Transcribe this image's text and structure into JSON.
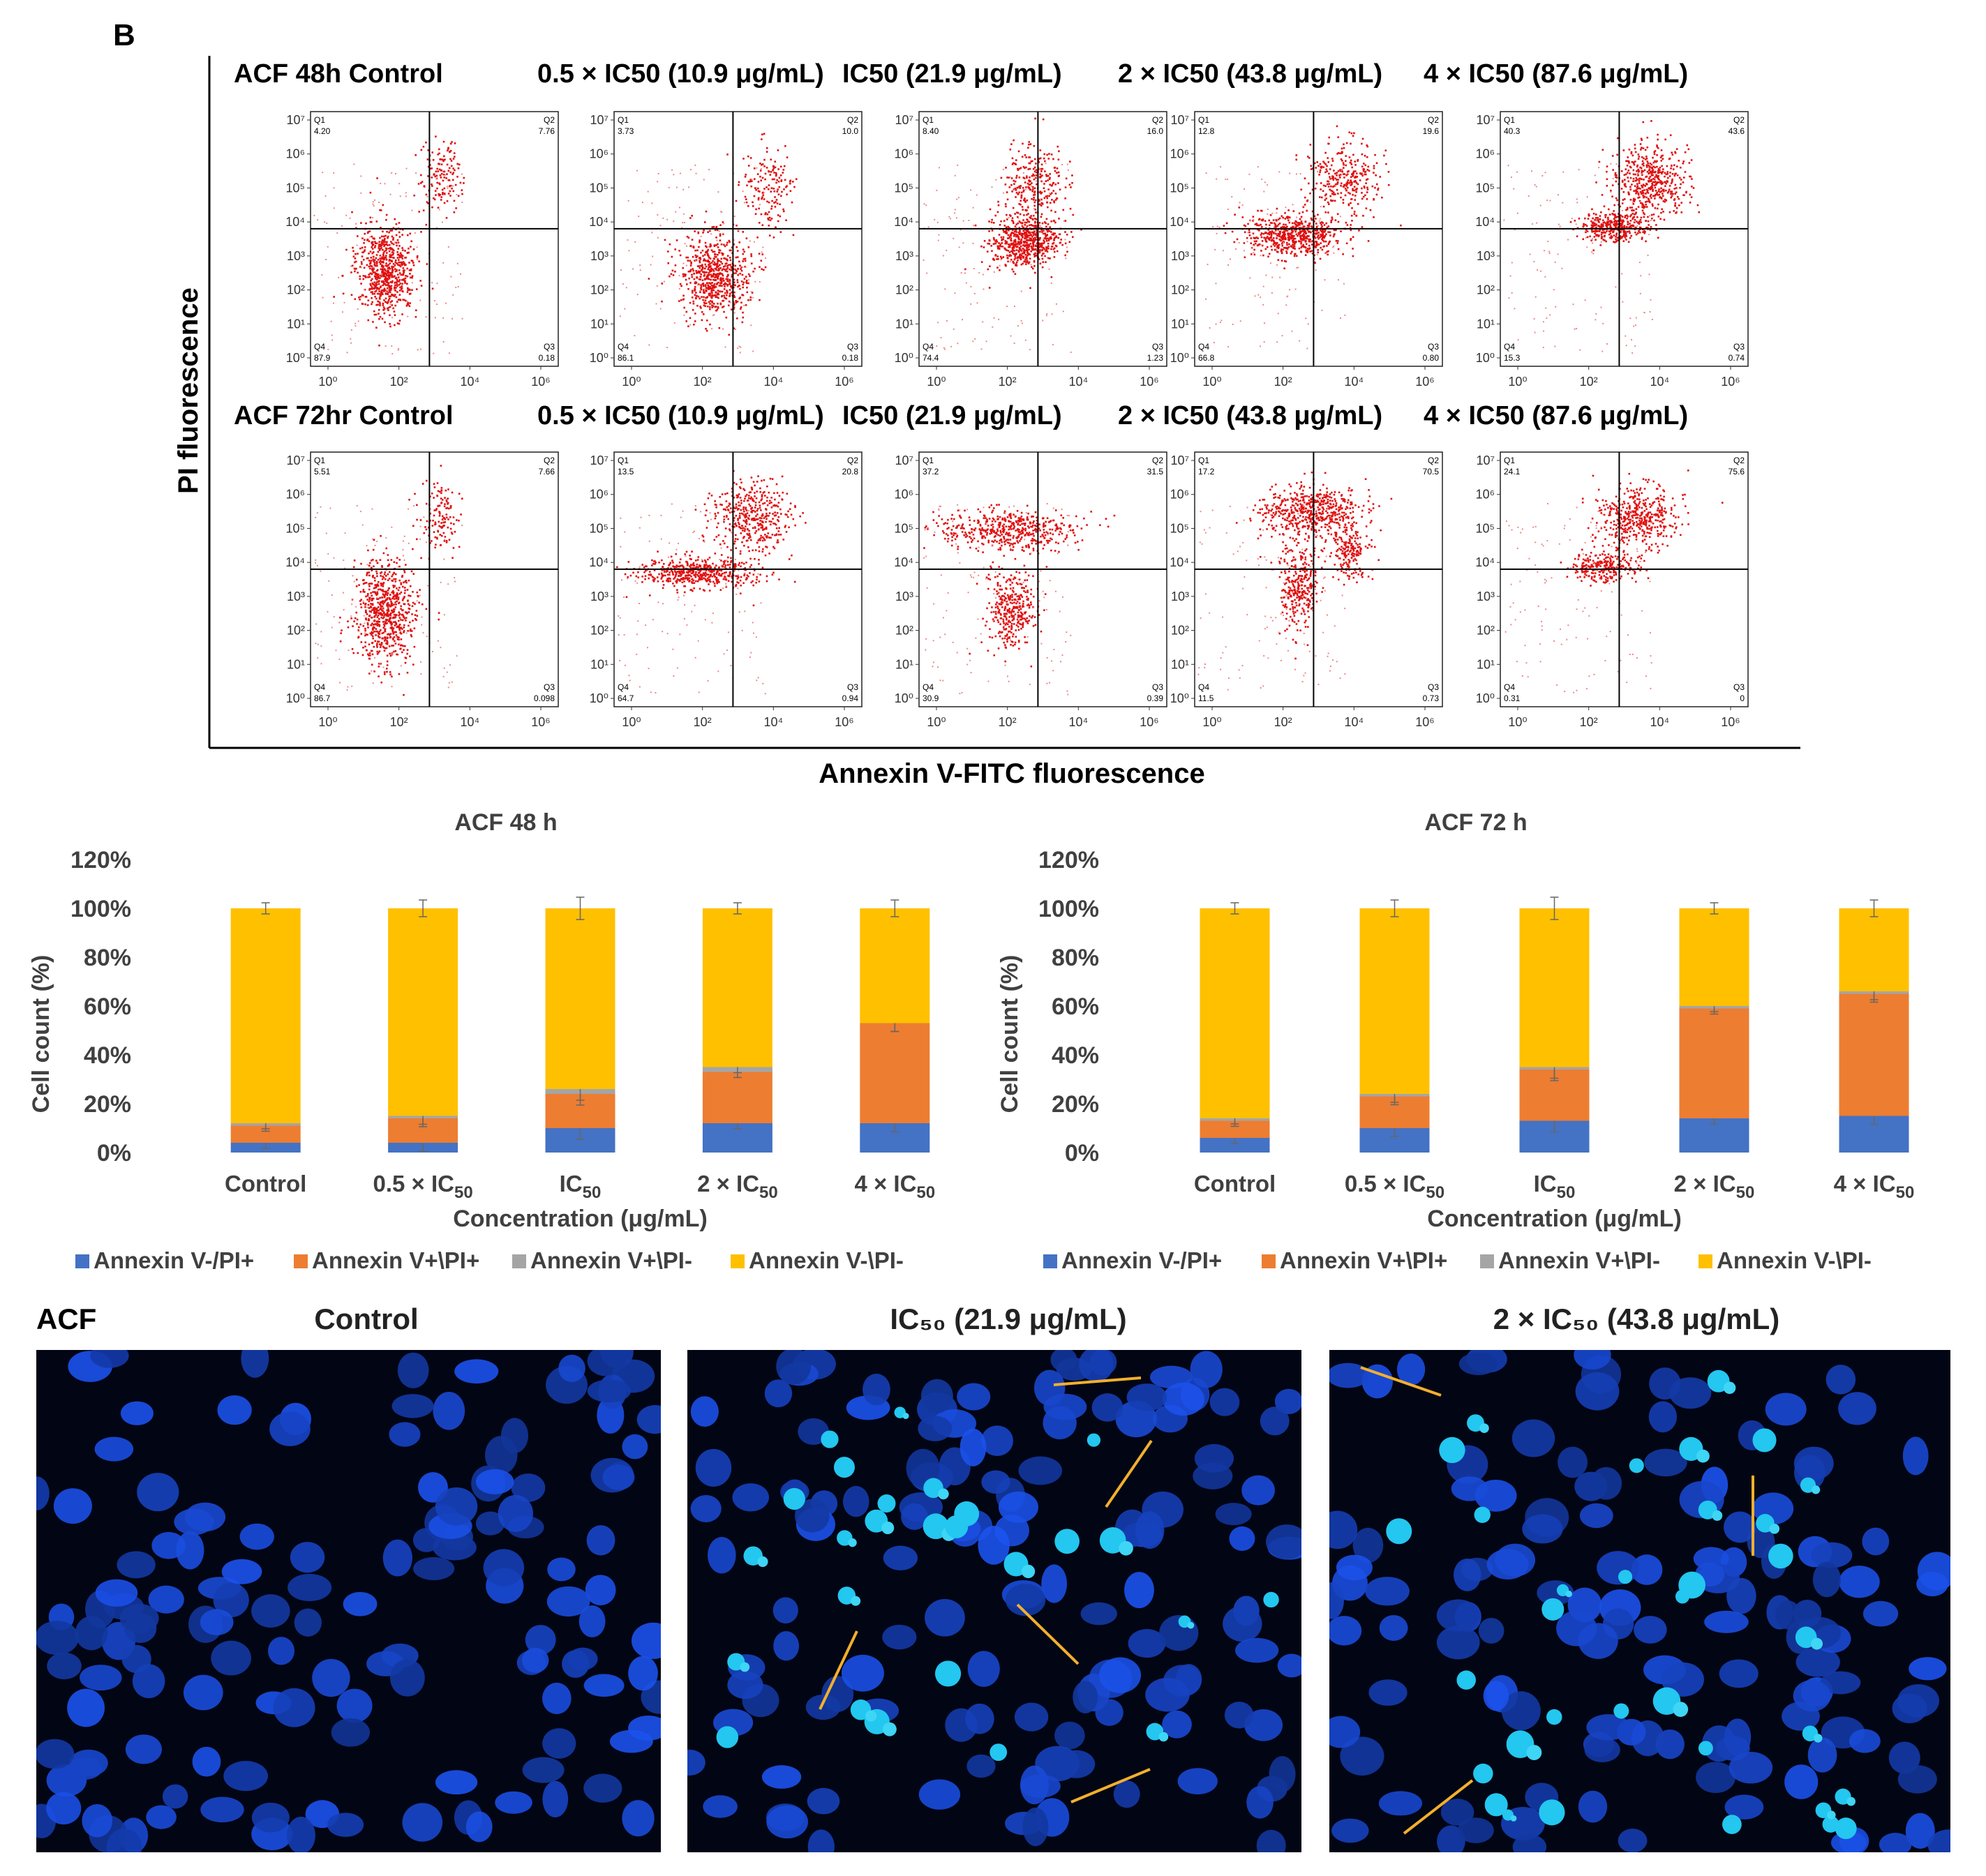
{
  "panel_label": "B",
  "flow": {
    "y_axis_title": "PI fluorescence",
    "x_axis_title": "Annexin V-FITC fluorescence",
    "y_ticks": [
      "10⁷",
      "10⁶",
      "10⁵",
      "10⁴",
      "10³",
      "10²",
      "10¹",
      "10⁰"
    ],
    "x_ticks": [
      "10⁰",
      "10²",
      "10⁴",
      "10⁶"
    ],
    "quadrant_labels": {
      "q1": "Q1",
      "q2": "Q2",
      "q3": "Q3",
      "q4": "Q4"
    },
    "rows": [
      {
        "plots": [
          {
            "title": "ACF 48h  Control",
            "q1": "4.20",
            "q2": "7.76",
            "q3": "0.18",
            "q4": "87.9"
          },
          {
            "title": "0.5 × IC50 (10.9 μg/mL)",
            "q1": "3.73",
            "q2": "10.0",
            "q3": "0.18",
            "q4": "86.1"
          },
          {
            "title": "IC50 (21.9 μg/mL)",
            "q1": "8.40",
            "q2": "16.0",
            "q3": "1.23",
            "q4": "74.4"
          },
          {
            "title": "2 × IC50 (43.8 μg/mL)",
            "q1": "12.8",
            "q2": "19.6",
            "q3": "0.80",
            "q4": "66.8"
          },
          {
            "title": "4 × IC50 (87.6 μg/mL)",
            "q1": "40.3",
            "q2": "43.6",
            "q3": "0.74",
            "q4": "15.3"
          }
        ]
      },
      {
        "plots": [
          {
            "title": "ACF 72hr  Control",
            "q1": "5.51",
            "q2": "7.66",
            "q3": "0.098",
            "q4": "86.7"
          },
          {
            "title": "0.5 × IC50 (10.9 μg/mL)",
            "q1": "13.5",
            "q2": "20.8",
            "q3": "0.94",
            "q4": "64.7"
          },
          {
            "title": "IC50 (21.9 μg/mL)",
            "q1": "37.2",
            "q2": "31.5",
            "q3": "0.39",
            "q4": "30.9"
          },
          {
            "title": "2 × IC50 (43.8 μg/mL)",
            "q1": "17.2",
            "q2": "70.5",
            "q3": "0.73",
            "q4": "11.5"
          },
          {
            "title": "4 × IC50 (87.6 μg/mL)",
            "q1": "24.1",
            "q2": "75.6",
            "q3": "0",
            "q4": "0.31"
          }
        ]
      }
    ]
  },
  "chart_data": [
    {
      "type": "bar",
      "stacked": true,
      "title": "ACF 48 h",
      "xlabel": "Concentration (μg/mL)",
      "ylabel": "Cell count (%)",
      "ylim": [
        0,
        120
      ],
      "yticks": [
        "0%",
        "20%",
        "40%",
        "60%",
        "80%",
        "100%",
        "120%"
      ],
      "categories": [
        {
          "main": "Control",
          "sub": ""
        },
        {
          "main": "0.5 × IC",
          "sub": "50"
        },
        {
          "main": "IC",
          "sub": "50"
        },
        {
          "main": "2 × IC",
          "sub": "50"
        },
        {
          "main": "4 × IC",
          "sub": "50"
        }
      ],
      "series": [
        {
          "name": "Annexin V-/PI+",
          "color": "#4472C4",
          "values": [
            4,
            4,
            10,
            12,
            12
          ]
        },
        {
          "name": "Annexin V+\\PI+",
          "color": "#ED7D31",
          "values": [
            7,
            10,
            14,
            21,
            41
          ]
        },
        {
          "name": "Annexin V+\\PI-",
          "color": "#A5A5A5",
          "values": [
            1,
            1,
            2,
            2,
            0
          ]
        },
        {
          "name": "Annexin V-\\PI-",
          "color": "#FFC000",
          "values": [
            88,
            85,
            74,
            65,
            47
          ]
        }
      ],
      "legend": "bottom"
    },
    {
      "type": "bar",
      "stacked": true,
      "title": "ACF 72 h",
      "xlabel": "Concentration (μg/mL)",
      "ylabel": "Cell count (%)",
      "ylim": [
        0,
        120
      ],
      "yticks": [
        "0%",
        "20%",
        "40%",
        "60%",
        "80%",
        "100%",
        "120%"
      ],
      "categories": [
        {
          "main": "Control",
          "sub": ""
        },
        {
          "main": "0.5 × IC",
          "sub": "50"
        },
        {
          "main": "IC",
          "sub": "50"
        },
        {
          "main": "2 × IC",
          "sub": "50"
        },
        {
          "main": "4 × IC",
          "sub": "50"
        }
      ],
      "series": [
        {
          "name": "Annexin V-/PI+",
          "color": "#4472C4",
          "values": [
            6,
            10,
            13,
            14,
            15
          ]
        },
        {
          "name": "Annexin V+\\PI+",
          "color": "#ED7D31",
          "values": [
            7,
            13,
            21,
            45,
            50
          ]
        },
        {
          "name": "Annexin V+\\PI-",
          "color": "#A5A5A5",
          "values": [
            1,
            1,
            1,
            1,
            1
          ]
        },
        {
          "name": "Annexin V-\\PI-",
          "color": "#FFC000",
          "values": [
            86,
            76,
            65,
            40,
            34
          ]
        }
      ],
      "legend": "bottom"
    }
  ],
  "micrographs": {
    "label": "ACF",
    "panels": [
      {
        "title": "Control"
      },
      {
        "title": "IC₅₀ (21.9 μg/mL)"
      },
      {
        "title": "2 × IC₅₀ (43.8 μg/mL)"
      }
    ]
  }
}
